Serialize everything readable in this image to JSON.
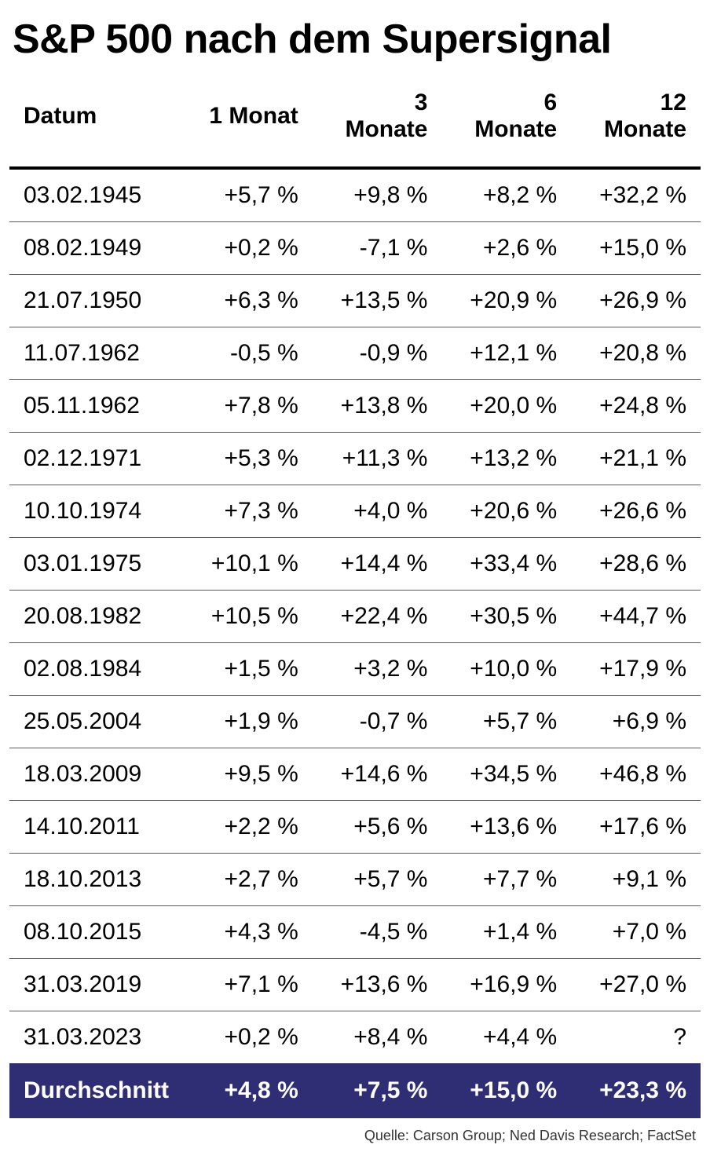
{
  "title": "S&P 500 nach dem Supersignal",
  "table": {
    "columns": [
      "Datum",
      "1 Monat",
      "3 Monate",
      "6 Monate",
      "12 Monate"
    ],
    "rows": [
      [
        "03.02.1945",
        "+5,7 %",
        "+9,8 %",
        "+8,2 %",
        "+32,2 %"
      ],
      [
        "08.02.1949",
        "+0,2 %",
        "-7,1 %",
        "+2,6 %",
        "+15,0 %"
      ],
      [
        "21.07.1950",
        "+6,3 %",
        "+13,5 %",
        "+20,9 %",
        "+26,9 %"
      ],
      [
        "11.07.1962",
        "-0,5 %",
        "-0,9 %",
        "+12,1 %",
        "+20,8 %"
      ],
      [
        "05.11.1962",
        "+7,8 %",
        "+13,8 %",
        "+20,0 %",
        "+24,8 %"
      ],
      [
        "02.12.1971",
        "+5,3 %",
        "+11,3 %",
        "+13,2 %",
        "+21,1 %"
      ],
      [
        "10.10.1974",
        "+7,3 %",
        "+4,0 %",
        "+20,6 %",
        "+26,6 %"
      ],
      [
        "03.01.1975",
        "+10,1 %",
        "+14,4 %",
        "+33,4 %",
        "+28,6 %"
      ],
      [
        "20.08.1982",
        "+10,5 %",
        "+22,4 %",
        "+30,5 %",
        "+44,7 %"
      ],
      [
        "02.08.1984",
        "+1,5 %",
        "+3,2 %",
        "+10,0 %",
        "+17,9 %"
      ],
      [
        "25.05.2004",
        "+1,9 %",
        "-0,7 %",
        "+5,7 %",
        "+6,9 %"
      ],
      [
        "18.03.2009",
        "+9,5 %",
        "+14,6 %",
        "+34,5 %",
        "+46,8 %"
      ],
      [
        "14.10.2011",
        "+2,2 %",
        "+5,6 %",
        "+13,6 %",
        "+17,6 %"
      ],
      [
        "18.10.2013",
        "+2,7 %",
        "+5,7 %",
        "+7,7 %",
        "+9,1 %"
      ],
      [
        "08.10.2015",
        "+4,3 %",
        "-4,5 %",
        "+1,4 %",
        "+7,0 %"
      ],
      [
        "31.03.2019",
        "+7,1 %",
        "+13,6 %",
        "+16,9 %",
        "+27,0 %"
      ],
      [
        "31.03.2023",
        "+0,2 %",
        "+8,4 %",
        "+4,4 %",
        "?"
      ]
    ],
    "summary_label": "Durchschnitt",
    "summary": [
      "+4,8 %",
      "+7,5 %",
      "+15,0 %",
      "+23,3 %"
    ],
    "header_fontsize": 30,
    "body_fontsize": 30,
    "header_border_color": "#000000",
    "row_border_color": "#5a5a5a",
    "summary_bg": "#2f2d73",
    "summary_text": "#ffffff",
    "background_color": "#ffffff",
    "text_color": "#000000"
  },
  "source": "Quelle: Carson Group; Ned Davis Research; FactSet"
}
